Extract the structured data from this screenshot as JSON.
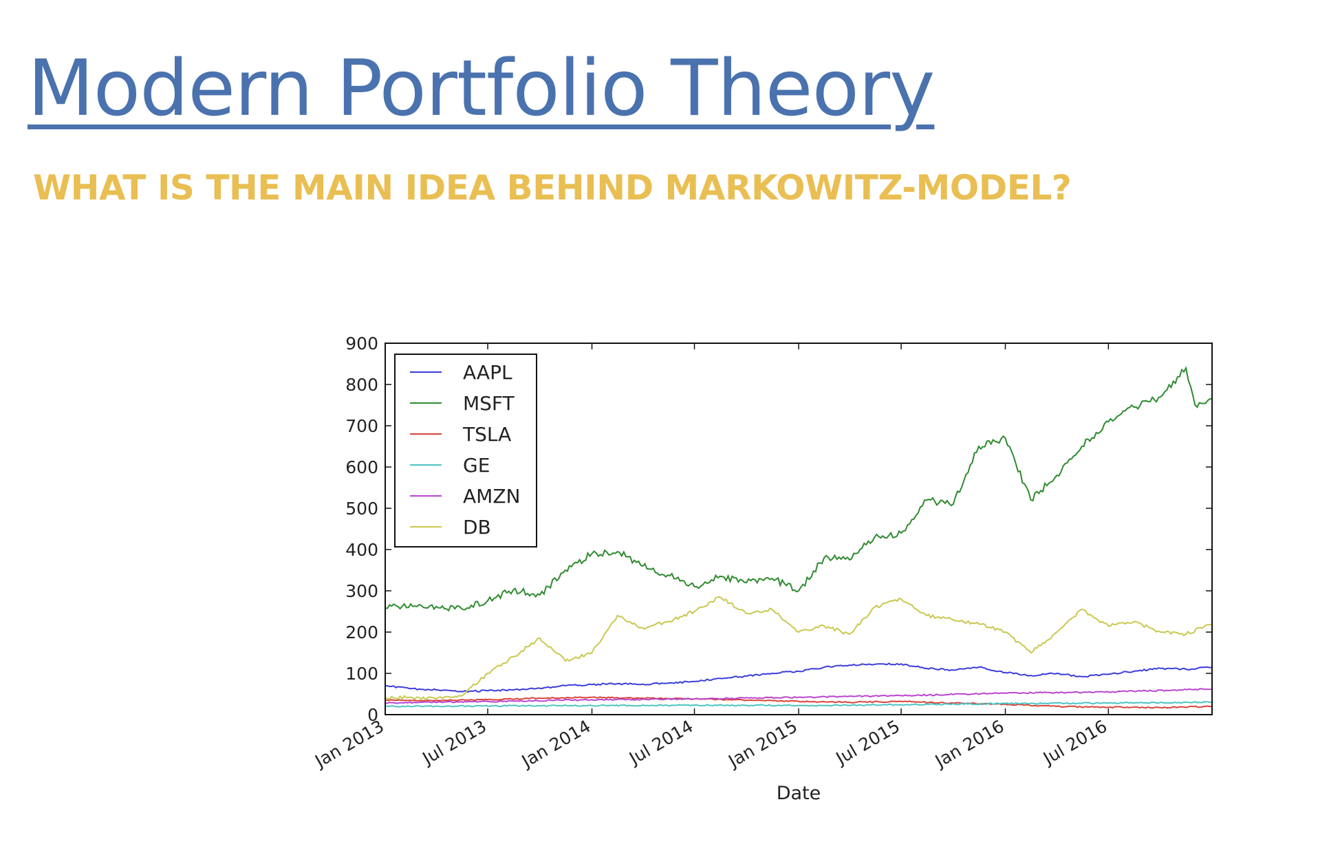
{
  "slide": {
    "title": "Modern Portfolio Theory",
    "subtitle": "WHAT IS THE MAIN IDEA BEHIND MARKOWITZ-MODEL?"
  },
  "chart_data": {
    "type": "line",
    "xlabel": "Date",
    "ylabel": "",
    "x_range": [
      "2013-01-01",
      "2016-12-31"
    ],
    "ylim": [
      0,
      900
    ],
    "yticks": [
      0,
      100,
      200,
      300,
      400,
      500,
      600,
      700,
      800,
      900
    ],
    "xticks": [
      {
        "date": "2013-01-01",
        "label": "Jan 2013"
      },
      {
        "date": "2013-07-01",
        "label": "Jul 2013"
      },
      {
        "date": "2014-01-01",
        "label": "Jan 2014"
      },
      {
        "date": "2014-07-01",
        "label": "Jul 2014"
      },
      {
        "date": "2015-01-01",
        "label": "Jan 2015"
      },
      {
        "date": "2015-07-01",
        "label": "Jul 2015"
      },
      {
        "date": "2016-01-01",
        "label": "Jan 2016"
      },
      {
        "date": "2016-07-01",
        "label": "Jul 2016"
      }
    ],
    "grid": false,
    "legend_position": "top-left",
    "series": [
      {
        "name": "AAPL",
        "color": "#3b3bdb",
        "points": [
          [
            "2013-01-01",
            70
          ],
          [
            "2013-02-15",
            63
          ],
          [
            "2013-04-01",
            60
          ],
          [
            "2013-05-15",
            56
          ],
          [
            "2013-07-01",
            58
          ],
          [
            "2013-08-15",
            60
          ],
          [
            "2013-10-01",
            64
          ],
          [
            "2013-11-15",
            70
          ],
          [
            "2014-01-01",
            73
          ],
          [
            "2014-02-15",
            75
          ],
          [
            "2014-04-01",
            74
          ],
          [
            "2014-05-15",
            76
          ],
          [
            "2014-07-01",
            80
          ],
          [
            "2014-08-15",
            88
          ],
          [
            "2014-10-01",
            93
          ],
          [
            "2014-11-15",
            100
          ],
          [
            "2015-01-01",
            105
          ],
          [
            "2015-02-15",
            115
          ],
          [
            "2015-04-01",
            120
          ],
          [
            "2015-05-15",
            122
          ],
          [
            "2015-07-01",
            123
          ],
          [
            "2015-08-15",
            112
          ],
          [
            "2015-10-01",
            108
          ],
          [
            "2015-11-15",
            115
          ],
          [
            "2016-01-01",
            102
          ],
          [
            "2016-02-15",
            95
          ],
          [
            "2016-04-01",
            100
          ],
          [
            "2016-05-15",
            92
          ],
          [
            "2016-07-01",
            98
          ],
          [
            "2016-08-15",
            105
          ],
          [
            "2016-10-01",
            112
          ],
          [
            "2016-11-15",
            110
          ],
          [
            "2016-12-31",
            115
          ]
        ]
      },
      {
        "name": "MSFT",
        "color": "#2e8a2e",
        "points": [
          [
            "2013-01-01",
            258
          ],
          [
            "2013-02-15",
            268
          ],
          [
            "2013-04-01",
            262
          ],
          [
            "2013-05-15",
            258
          ],
          [
            "2013-07-01",
            276
          ],
          [
            "2013-08-15",
            302
          ],
          [
            "2013-10-01",
            290
          ],
          [
            "2013-11-15",
            350
          ],
          [
            "2014-01-01",
            390
          ],
          [
            "2014-02-15",
            395
          ],
          [
            "2014-04-01",
            360
          ],
          [
            "2014-05-15",
            338
          ],
          [
            "2014-07-01",
            310
          ],
          [
            "2014-08-15",
            335
          ],
          [
            "2014-10-01",
            320
          ],
          [
            "2014-11-15",
            330
          ],
          [
            "2015-01-01",
            300
          ],
          [
            "2015-02-15",
            380
          ],
          [
            "2015-04-01",
            375
          ],
          [
            "2015-05-15",
            430
          ],
          [
            "2015-07-01",
            440
          ],
          [
            "2015-08-15",
            520
          ],
          [
            "2015-10-01",
            510
          ],
          [
            "2015-11-15",
            650
          ],
          [
            "2016-01-01",
            670
          ],
          [
            "2016-02-15",
            520
          ],
          [
            "2016-04-01",
            580
          ],
          [
            "2016-05-15",
            650
          ],
          [
            "2016-07-01",
            710
          ],
          [
            "2016-08-15",
            745
          ],
          [
            "2016-10-01",
            770
          ],
          [
            "2016-11-15",
            840
          ],
          [
            "2016-12-01",
            750
          ],
          [
            "2016-12-31",
            765
          ]
        ]
      },
      {
        "name": "TSLA",
        "color": "#d9433b",
        "points": [
          [
            "2013-01-01",
            35
          ],
          [
            "2013-04-01",
            34
          ],
          [
            "2013-07-01",
            36
          ],
          [
            "2013-10-01",
            40
          ],
          [
            "2014-01-01",
            42
          ],
          [
            "2014-04-01",
            40
          ],
          [
            "2014-07-01",
            38
          ],
          [
            "2014-10-01",
            35
          ],
          [
            "2015-01-01",
            32
          ],
          [
            "2015-04-01",
            30
          ],
          [
            "2015-07-01",
            32
          ],
          [
            "2015-10-01",
            28
          ],
          [
            "2016-01-01",
            25
          ],
          [
            "2016-04-01",
            20
          ],
          [
            "2016-07-01",
            18
          ],
          [
            "2016-10-01",
            17
          ],
          [
            "2016-12-31",
            20
          ]
        ]
      },
      {
        "name": "GE",
        "color": "#4cc4c4",
        "points": [
          [
            "2013-01-01",
            20
          ],
          [
            "2013-07-01",
            21
          ],
          [
            "2014-01-01",
            22
          ],
          [
            "2014-07-01",
            23
          ],
          [
            "2015-01-01",
            22
          ],
          [
            "2015-07-01",
            24
          ],
          [
            "2016-01-01",
            27
          ],
          [
            "2016-07-01",
            28
          ],
          [
            "2016-12-31",
            30
          ]
        ]
      },
      {
        "name": "AMZN",
        "color": "#b845cf",
        "points": [
          [
            "2013-01-01",
            28
          ],
          [
            "2013-07-01",
            32
          ],
          [
            "2014-01-01",
            36
          ],
          [
            "2014-07-01",
            38
          ],
          [
            "2015-01-01",
            42
          ],
          [
            "2015-07-01",
            46
          ],
          [
            "2016-01-01",
            52
          ],
          [
            "2016-07-01",
            55
          ],
          [
            "2016-12-31",
            62
          ]
        ]
      },
      {
        "name": "DB",
        "color": "#c8c850",
        "points": [
          [
            "2013-01-01",
            40
          ],
          [
            "2013-02-15",
            42
          ],
          [
            "2013-04-01",
            38
          ],
          [
            "2013-05-15",
            45
          ],
          [
            "2013-07-01",
            100
          ],
          [
            "2013-08-15",
            140
          ],
          [
            "2013-10-01",
            185
          ],
          [
            "2013-11-15",
            130
          ],
          [
            "2014-01-01",
            150
          ],
          [
            "2014-02-15",
            240
          ],
          [
            "2014-04-01",
            210
          ],
          [
            "2014-05-15",
            225
          ],
          [
            "2014-07-01",
            250
          ],
          [
            "2014-08-15",
            285
          ],
          [
            "2014-10-01",
            245
          ],
          [
            "2014-11-15",
            255
          ],
          [
            "2015-01-01",
            200
          ],
          [
            "2015-02-15",
            215
          ],
          [
            "2015-04-01",
            195
          ],
          [
            "2015-05-15",
            260
          ],
          [
            "2015-07-01",
            280
          ],
          [
            "2015-08-15",
            240
          ],
          [
            "2015-10-01",
            230
          ],
          [
            "2015-11-15",
            220
          ],
          [
            "2016-01-01",
            200
          ],
          [
            "2016-02-15",
            150
          ],
          [
            "2016-04-01",
            200
          ],
          [
            "2016-05-15",
            255
          ],
          [
            "2016-07-01",
            215
          ],
          [
            "2016-08-15",
            225
          ],
          [
            "2016-10-01",
            200
          ],
          [
            "2016-11-15",
            195
          ],
          [
            "2016-12-31",
            220
          ]
        ]
      }
    ]
  }
}
